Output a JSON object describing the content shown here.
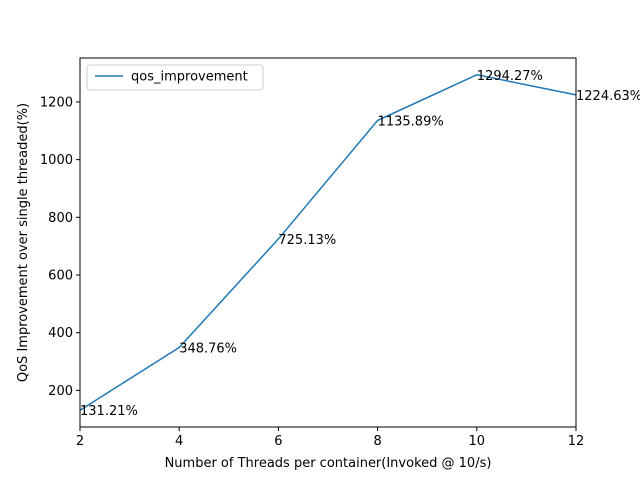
{
  "chart_data": {
    "type": "line",
    "title": "",
    "xlabel": "Number of Threads per container(Invoked @ 10/s)",
    "ylabel": "QoS Improvement over single threaded(%)",
    "xlim": [
      2,
      12
    ],
    "ylim": [
      73.06,
      1352.42
    ],
    "x_ticks": [
      2,
      4,
      6,
      8,
      10,
      12
    ],
    "y_ticks": [
      200,
      400,
      600,
      800,
      1000,
      1200
    ],
    "grid": false,
    "legend_position": "upper-left",
    "series": [
      {
        "name": "qos_improvement",
        "color": "#1f77b4",
        "x": [
          2,
          4,
          6,
          8,
          10,
          12
        ],
        "y": [
          131.21,
          348.76,
          725.13,
          1135.89,
          1294.27,
          1224.63
        ]
      }
    ],
    "annotations": [
      "131.21%",
      "348.76%",
      "725.13%",
      "1135.89%",
      "1294.27%",
      "1224.63%"
    ]
  }
}
